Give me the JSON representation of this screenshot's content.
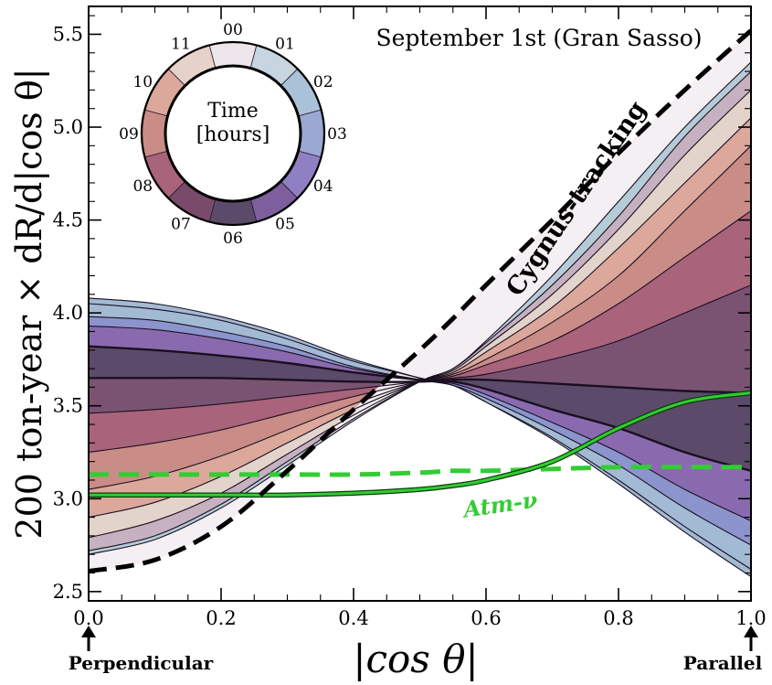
{
  "chart_data": {
    "type": "area",
    "title": "September 1st (Gran Sasso)",
    "xlabel": "|cos θ|",
    "ylabel": "200 ton-year × dR/d|cos θ|",
    "xlim": [
      0.0,
      1.0
    ],
    "ylim": [
      2.45,
      5.65
    ],
    "xticks": [
      0.0,
      0.2,
      0.4,
      0.6,
      0.8,
      1.0
    ],
    "xtick_labels": [
      "0.0",
      "0.2",
      "0.4",
      "0.6",
      "0.8",
      "1.0"
    ],
    "yticks": [
      2.5,
      3.0,
      3.5,
      4.0,
      4.5,
      5.0,
      5.5
    ],
    "ytick_labels": [
      "2.5",
      "3.0",
      "3.5",
      "4.0",
      "4.5",
      "5.0",
      "5.5"
    ],
    "grid": false,
    "x": [
      0.0,
      0.1,
      0.2,
      0.3,
      0.4,
      0.5,
      0.55,
      0.6,
      0.7,
      0.8,
      0.9,
      1.0
    ],
    "hour_curves": [
      {
        "hour": "00",
        "color": "#ece6ea",
        "values": [
          2.7,
          2.78,
          2.95,
          3.18,
          3.42,
          3.63,
          3.7,
          3.85,
          4.2,
          4.6,
          5.0,
          5.35
        ]
      },
      {
        "hour": "01",
        "color": "#b5ccd8",
        "values": [
          2.72,
          2.8,
          2.97,
          3.2,
          3.43,
          3.63,
          3.7,
          3.84,
          4.15,
          4.52,
          4.95,
          5.3
        ]
      },
      {
        "hour": "02",
        "color": "#c6b1c0",
        "values": [
          2.79,
          2.88,
          3.03,
          3.24,
          3.45,
          3.63,
          3.69,
          3.82,
          4.1,
          4.45,
          4.85,
          5.2
        ]
      },
      {
        "hour": "03",
        "color": "#e2d3cb",
        "values": [
          2.9,
          2.98,
          3.12,
          3.3,
          3.48,
          3.63,
          3.68,
          3.79,
          4.03,
          4.35,
          4.7,
          5.05
        ]
      },
      {
        "hour": "04",
        "color": "#dca89b",
        "values": [
          3.05,
          3.12,
          3.23,
          3.37,
          3.51,
          3.63,
          3.67,
          3.75,
          3.95,
          4.2,
          4.55,
          4.9
        ]
      },
      {
        "hour": "05",
        "color": "#c98c87",
        "values": [
          3.25,
          3.3,
          3.37,
          3.46,
          3.55,
          3.63,
          3.66,
          3.72,
          3.85,
          4.05,
          4.3,
          4.55
        ]
      },
      {
        "hour": "06",
        "color": "#a9637a",
        "values": [
          3.46,
          3.48,
          3.51,
          3.55,
          3.59,
          3.63,
          3.65,
          3.67,
          3.75,
          3.85,
          4.0,
          4.15
        ]
      },
      {
        "hour": "07",
        "color": "#7a5373",
        "values": [
          3.65,
          3.65,
          3.65,
          3.64,
          3.63,
          3.63,
          3.64,
          3.64,
          3.62,
          3.6,
          3.58,
          3.57
        ]
      },
      {
        "hour": "08",
        "color": "#5c4a6b",
        "values": [
          3.82,
          3.8,
          3.77,
          3.73,
          3.68,
          3.64,
          3.63,
          3.59,
          3.48,
          3.38,
          3.25,
          3.15
        ]
      },
      {
        "hour": "09",
        "color": "#8a6aae",
        "values": [
          3.93,
          3.91,
          3.86,
          3.79,
          3.7,
          3.64,
          3.62,
          3.56,
          3.41,
          3.25,
          3.05,
          2.88
        ]
      },
      {
        "hour": "10",
        "color": "#8b94cc",
        "values": [
          3.98,
          3.96,
          3.9,
          3.82,
          3.71,
          3.64,
          3.61,
          3.54,
          3.37,
          3.18,
          2.95,
          2.75
        ]
      },
      {
        "hour": "11",
        "color": "#a3bad4",
        "values": [
          4.05,
          4.02,
          3.96,
          3.86,
          3.74,
          3.65,
          3.61,
          3.52,
          3.33,
          3.1,
          2.85,
          2.62
        ]
      },
      {
        "hour": "11b",
        "color": "#a3bad4",
        "values": [
          4.08,
          4.05,
          3.98,
          3.88,
          3.75,
          3.65,
          3.61,
          3.52,
          3.32,
          3.08,
          2.82,
          2.58
        ]
      }
    ],
    "cygnus_tracking": {
      "label": "Cygnus-tracking",
      "values": [
        2.61,
        2.67,
        2.85,
        3.15,
        3.48,
        3.8,
        3.97,
        4.15,
        4.5,
        4.86,
        5.2,
        5.52
      ]
    },
    "atm_nu": {
      "label": "Atm-ν",
      "solid_values": [
        3.02,
        3.02,
        3.02,
        3.02,
        3.03,
        3.05,
        3.07,
        3.1,
        3.2,
        3.38,
        3.52,
        3.57
      ],
      "dashed_values": [
        3.13,
        3.13,
        3.13,
        3.13,
        3.13,
        3.14,
        3.15,
        3.15,
        3.16,
        3.17,
        3.17,
        3.17
      ]
    },
    "annotations": {
      "perpendicular": "Perpendicular",
      "parallel": "Parallel"
    },
    "clock_inset": {
      "title_line1": "Time",
      "title_line2": "[hours]",
      "hours": [
        "00",
        "01",
        "02",
        "03",
        "04",
        "05",
        "06",
        "07",
        "08",
        "09",
        "10",
        "11"
      ],
      "colors": [
        "#ece6ea",
        "#c6d5df",
        "#a9c2d8",
        "#9aa8d4",
        "#8f80c3",
        "#7d5f9d",
        "#5c4a6b",
        "#7a4a6a",
        "#a9637a",
        "#c98c87",
        "#dca89b",
        "#e6d2c8"
      ]
    }
  }
}
